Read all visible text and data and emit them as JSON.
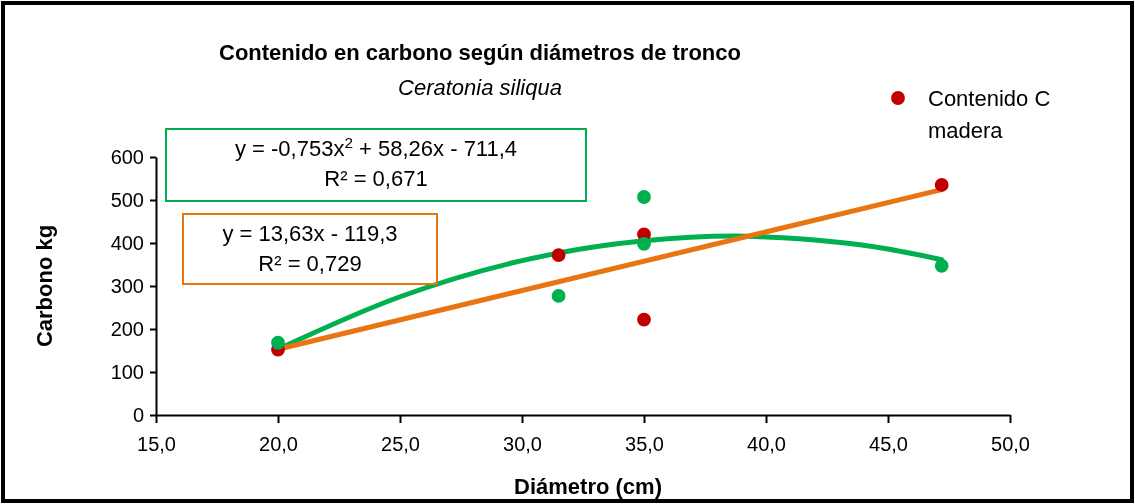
{
  "chart_data": {
    "type": "scatter",
    "title": "Contenido en carbono según diámetros de tronco",
    "subtitle": "Ceratonia siliqua",
    "xlabel": "Diámetro (cm)",
    "ylabel": "Carbono kg",
    "series": [
      {
        "name": "Contenido C madera",
        "color": "#c00000",
        "x": [
          20,
          31.5,
          35,
          35,
          47.2
        ],
        "values": [
          152,
          372,
          420,
          222,
          535
        ]
      },
      {
        "color": "#00b050",
        "x": [
          20,
          31.5,
          35,
          35,
          47.2
        ],
        "values": [
          168,
          277,
          507,
          398,
          347
        ]
      },
      {
        "type": "line",
        "marker": "none",
        "color": "#00b050",
        "x": [
          20,
          25,
          30,
          35,
          38.7,
          40,
          45,
          47.2
        ],
        "values": [
          153,
          275,
          359,
          405,
          416,
          414,
          386,
          361
        ]
      },
      {
        "type": "line",
        "marker": "none",
        "color": "#e87511",
        "x": [
          20,
          47.2
        ],
        "values": [
          153,
          524
        ]
      }
    ],
    "annotations": [
      "y = -0,753x$^{2}$ + 58,26x - 711,4\nR² = 0,671",
      "y = 13,63x - 119,3\nR² = 0,729"
    ],
    "xlim": [
      15,
      50
    ],
    "xticks": [
      {
        "value": 15,
        "label": "15,0"
      },
      {
        "value": 20,
        "label": "20,0"
      },
      {
        "value": 25,
        "label": "25,0"
      },
      {
        "value": 30,
        "label": "30,0"
      },
      {
        "value": 35,
        "label": "35,0"
      },
      {
        "value": 40,
        "label": "40,0"
      },
      {
        "value": 45,
        "label": "45,0"
      },
      {
        "value": 50,
        "label": "50,0"
      }
    ],
    "ylim": [
      0,
      600
    ],
    "yticks": [
      0,
      100,
      200,
      300,
      400,
      500,
      600
    ],
    "grid": false,
    "legend": "top right",
    "marker": "circle",
    "line_style": "solid"
  }
}
